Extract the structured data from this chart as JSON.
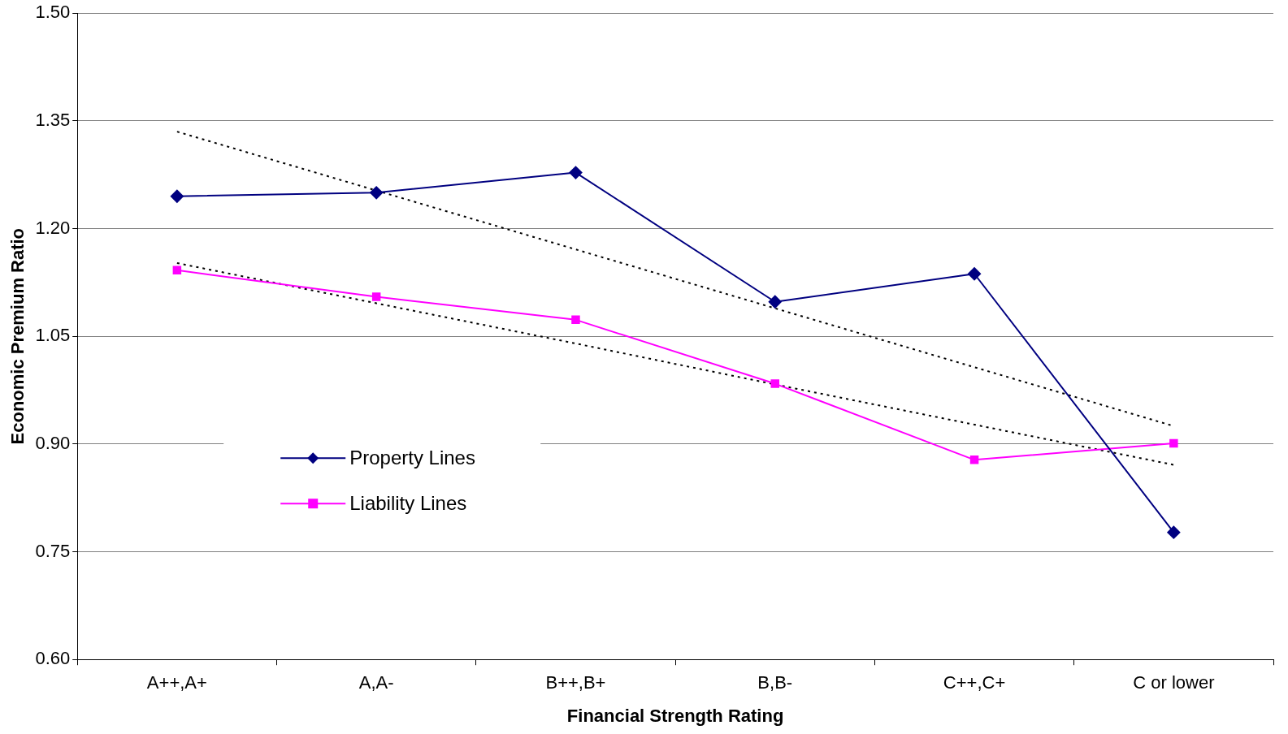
{
  "chart_data": {
    "type": "line",
    "xlabel": "Financial Strength Rating",
    "ylabel": "Economic Premium Ratio",
    "categories": [
      "A++,A+",
      "A,A-",
      "B++,B+",
      "B,B-",
      "C++,C+",
      "C or lower"
    ],
    "series": [
      {
        "name": "Property Lines",
        "color": "#000080",
        "marker": "diamond",
        "values": [
          1.245,
          1.25,
          1.278,
          1.098,
          1.137,
          0.777
        ]
      },
      {
        "name": "Liability Lines",
        "color": "#ff00ff",
        "marker": "square",
        "values": [
          1.142,
          1.105,
          1.073,
          0.984,
          0.878,
          0.901
        ]
      },
      {
        "color": "#000000",
        "marker": "none",
        "line_style": "dotted",
        "values": [
          1.335,
          1.253,
          1.171,
          1.089,
          1.007,
          0.925
        ]
      },
      {
        "color": "#000000",
        "marker": "none",
        "line_style": "dotted",
        "values": [
          1.152,
          1.096,
          1.04,
          0.983,
          0.927,
          0.871
        ]
      }
    ],
    "ylim": [
      0.6,
      1.5
    ],
    "yticks": [
      {
        "value": 0.6,
        "label": "0.60"
      },
      {
        "value": 0.75,
        "label": "0.75"
      },
      {
        "value": 0.9,
        "label": "0.90"
      },
      {
        "value": 1.05,
        "label": "1.05"
      },
      {
        "value": 1.2,
        "label": "1.20"
      },
      {
        "value": 1.35,
        "label": "1.35"
      },
      {
        "value": 1.5,
        "label": "1.50"
      }
    ],
    "grid": "y",
    "legend": "left"
  }
}
